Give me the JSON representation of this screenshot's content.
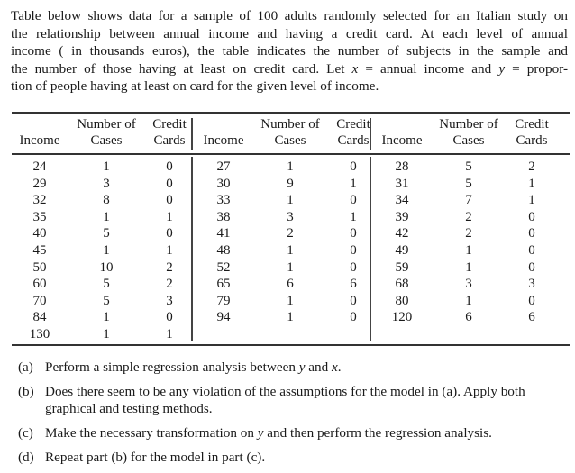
{
  "intro": {
    "lines": [
      "Table below shows data for a sample of 100 adults randomly selected for an Italian study on",
      "the relationship between annual income and having a credit card.  At each level of annual",
      "income ( in thousands euros), the table indicates the number of subjects in the sample and",
      "the number of those having at least on credit card. Let",
      "tion of people having at least on card for the given level of income."
    ],
    "line4_var_x": "x",
    "line4_mid": " = annual income and ",
    "line4_var_y": "y",
    "line4_end": " = propor-"
  },
  "table": {
    "headers": {
      "income": "Income",
      "cases_top": "Number of",
      "cases_bottom": "Cases",
      "cards_top": "Credit",
      "cards_bottom": "Cards"
    },
    "groups": [
      {
        "rows": [
          [
            "24",
            "1",
            "0"
          ],
          [
            "29",
            "3",
            "0"
          ],
          [
            "32",
            "8",
            "0"
          ],
          [
            "35",
            "1",
            "1"
          ],
          [
            "40",
            "5",
            "0"
          ],
          [
            "45",
            "1",
            "1"
          ],
          [
            "50",
            "10",
            "2"
          ],
          [
            "60",
            "5",
            "2"
          ],
          [
            "70",
            "5",
            "3"
          ],
          [
            "84",
            "1",
            "0"
          ],
          [
            "130",
            "1",
            "1"
          ]
        ]
      },
      {
        "rows": [
          [
            "27",
            "1",
            "0"
          ],
          [
            "30",
            "9",
            "1"
          ],
          [
            "33",
            "1",
            "0"
          ],
          [
            "38",
            "3",
            "1"
          ],
          [
            "41",
            "2",
            "0"
          ],
          [
            "48",
            "1",
            "0"
          ],
          [
            "52",
            "1",
            "0"
          ],
          [
            "65",
            "6",
            "6"
          ],
          [
            "79",
            "1",
            "0"
          ],
          [
            "94",
            "1",
            "0"
          ]
        ]
      },
      {
        "rows": [
          [
            "28",
            "5",
            "2"
          ],
          [
            "31",
            "5",
            "1"
          ],
          [
            "34",
            "7",
            "1"
          ],
          [
            "39",
            "2",
            "0"
          ],
          [
            "42",
            "2",
            "0"
          ],
          [
            "49",
            "1",
            "0"
          ],
          [
            "59",
            "1",
            "0"
          ],
          [
            "68",
            "3",
            "3"
          ],
          [
            "80",
            "1",
            "0"
          ],
          [
            "120",
            "6",
            "6"
          ]
        ]
      }
    ]
  },
  "questions": [
    {
      "label": "(a)",
      "text_before": "Perform a simple regression analysis between ",
      "var1": "y",
      "text_mid": " and ",
      "var2": "x",
      "text_after": "."
    },
    {
      "label": "(b)",
      "text": "Does there seem to be any violation of the assumptions for the model in (a).  Apply both graphical and testing methods."
    },
    {
      "label": "(c)",
      "text_before": "Make the necessary transformation on ",
      "var1": "y",
      "text_after": " and then perform the regression analysis."
    },
    {
      "label": "(d)",
      "text": "Repeat part (b) for the model in part (c)."
    }
  ]
}
